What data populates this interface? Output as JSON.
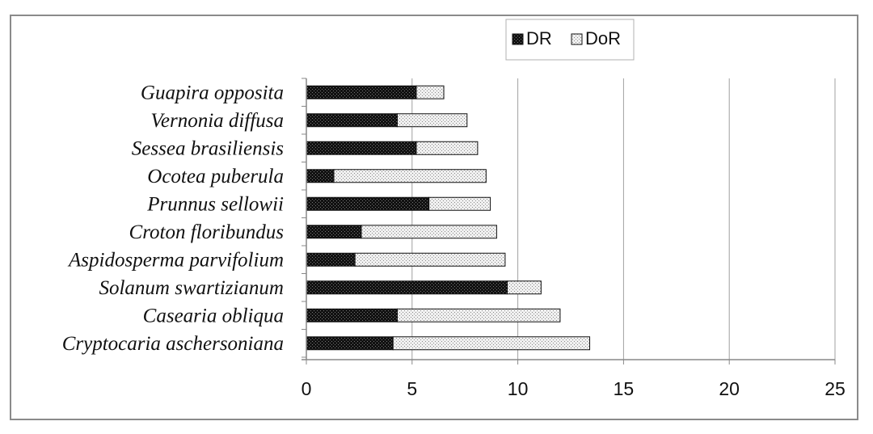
{
  "chart_data": {
    "type": "bar",
    "orientation": "horizontal",
    "stacked": true,
    "categories": [
      "Guapira opposita",
      "Vernonia diffusa",
      "Sessea brasiliensis",
      "Ocotea puberula",
      "Prunnus sellowii",
      "Croton floribundus",
      "Aspidosperma parvifolium",
      "Solanum swartizianum",
      "Casearia obliqua",
      "Cryptocaria aschersoniana"
    ],
    "series": [
      {
        "name": "DR",
        "pattern": "dark",
        "values": [
          5.2,
          4.3,
          5.2,
          1.3,
          5.8,
          2.6,
          2.3,
          9.5,
          4.3,
          4.1
        ]
      },
      {
        "name": "DoR",
        "pattern": "light",
        "values": [
          1.3,
          3.3,
          2.9,
          7.2,
          2.9,
          6.4,
          7.1,
          1.6,
          7.7,
          9.3
        ]
      }
    ],
    "xlim": [
      0,
      25
    ],
    "xticks": [
      "0",
      "5",
      "10",
      "15",
      "20",
      "25"
    ],
    "title": "",
    "xlabel": "",
    "ylabel": "",
    "grid": "vertical",
    "legend_position": "top-right",
    "colors": {
      "dark": "#111111",
      "light": "#e4e4e4",
      "grid": "#a0a0a0",
      "frame": "#8a8a8a"
    }
  }
}
